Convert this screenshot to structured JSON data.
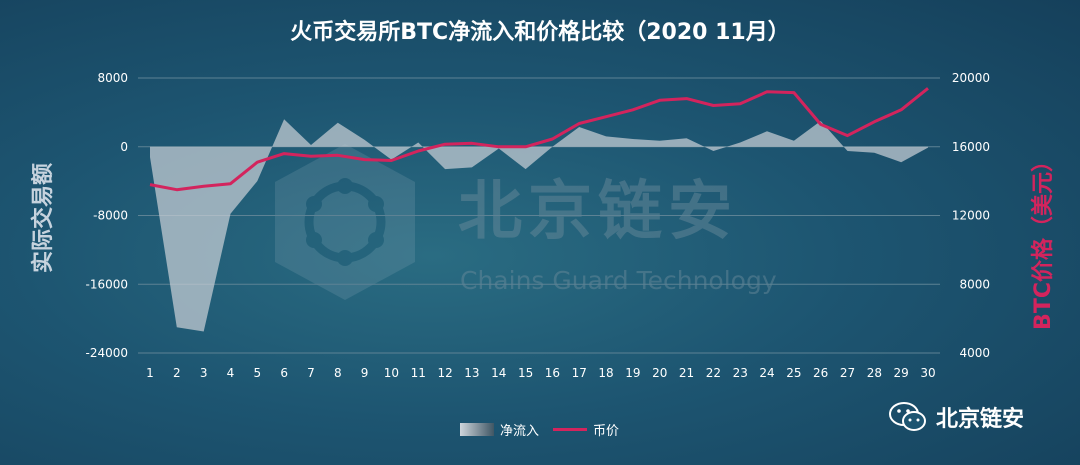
{
  "chart_data": {
    "type": "area+line",
    "title": "火币交易所BTC净流入和价格比较（2020 11月）",
    "ylabel_left": "实际交易额",
    "ylabel_right": "BTC价格（美元）",
    "x": [
      1,
      2,
      3,
      4,
      5,
      6,
      7,
      8,
      9,
      10,
      11,
      12,
      13,
      14,
      15,
      16,
      17,
      18,
      19,
      20,
      21,
      22,
      23,
      24,
      25,
      26,
      27,
      28,
      29,
      30
    ],
    "y_left_ticks": [
      "8000",
      "0",
      "-8000",
      "-16000",
      "-24000"
    ],
    "y_right_ticks": [
      "20000",
      "16000",
      "12000",
      "8000",
      "4000"
    ],
    "ylim_left": [
      -24000,
      8000
    ],
    "ylim_right": [
      4000,
      20000
    ],
    "series": [
      {
        "name": "净流入",
        "type": "area",
        "axis": "left",
        "values": [
          -1200,
          -21000,
          -21500,
          -7800,
          -4000,
          3200,
          200,
          2800,
          800,
          -1500,
          500,
          -2600,
          -2400,
          -200,
          -2600,
          0,
          2300,
          1200,
          900,
          700,
          1000,
          -500,
          500,
          1800,
          700,
          3000,
          -500,
          -700,
          -1800,
          -100
        ]
      },
      {
        "name": "币价",
        "type": "line",
        "axis": "right",
        "values": [
          13800,
          13500,
          13700,
          13850,
          15100,
          15600,
          15450,
          15500,
          15250,
          15200,
          15750,
          16150,
          16200,
          16000,
          16000,
          16450,
          17350,
          17750,
          18150,
          18700,
          18800,
          18400,
          18500,
          19200,
          19150,
          17300,
          16650,
          17450,
          18150,
          19400
        ]
      }
    ]
  },
  "watermark": {
    "cn": "北京链安",
    "en": "Chains Guard Technology"
  },
  "brand": {
    "name": "北京链安",
    "icon": "wechat-icon"
  },
  "colors": {
    "line": "#d3245d",
    "area": "#c7cfd6"
  }
}
